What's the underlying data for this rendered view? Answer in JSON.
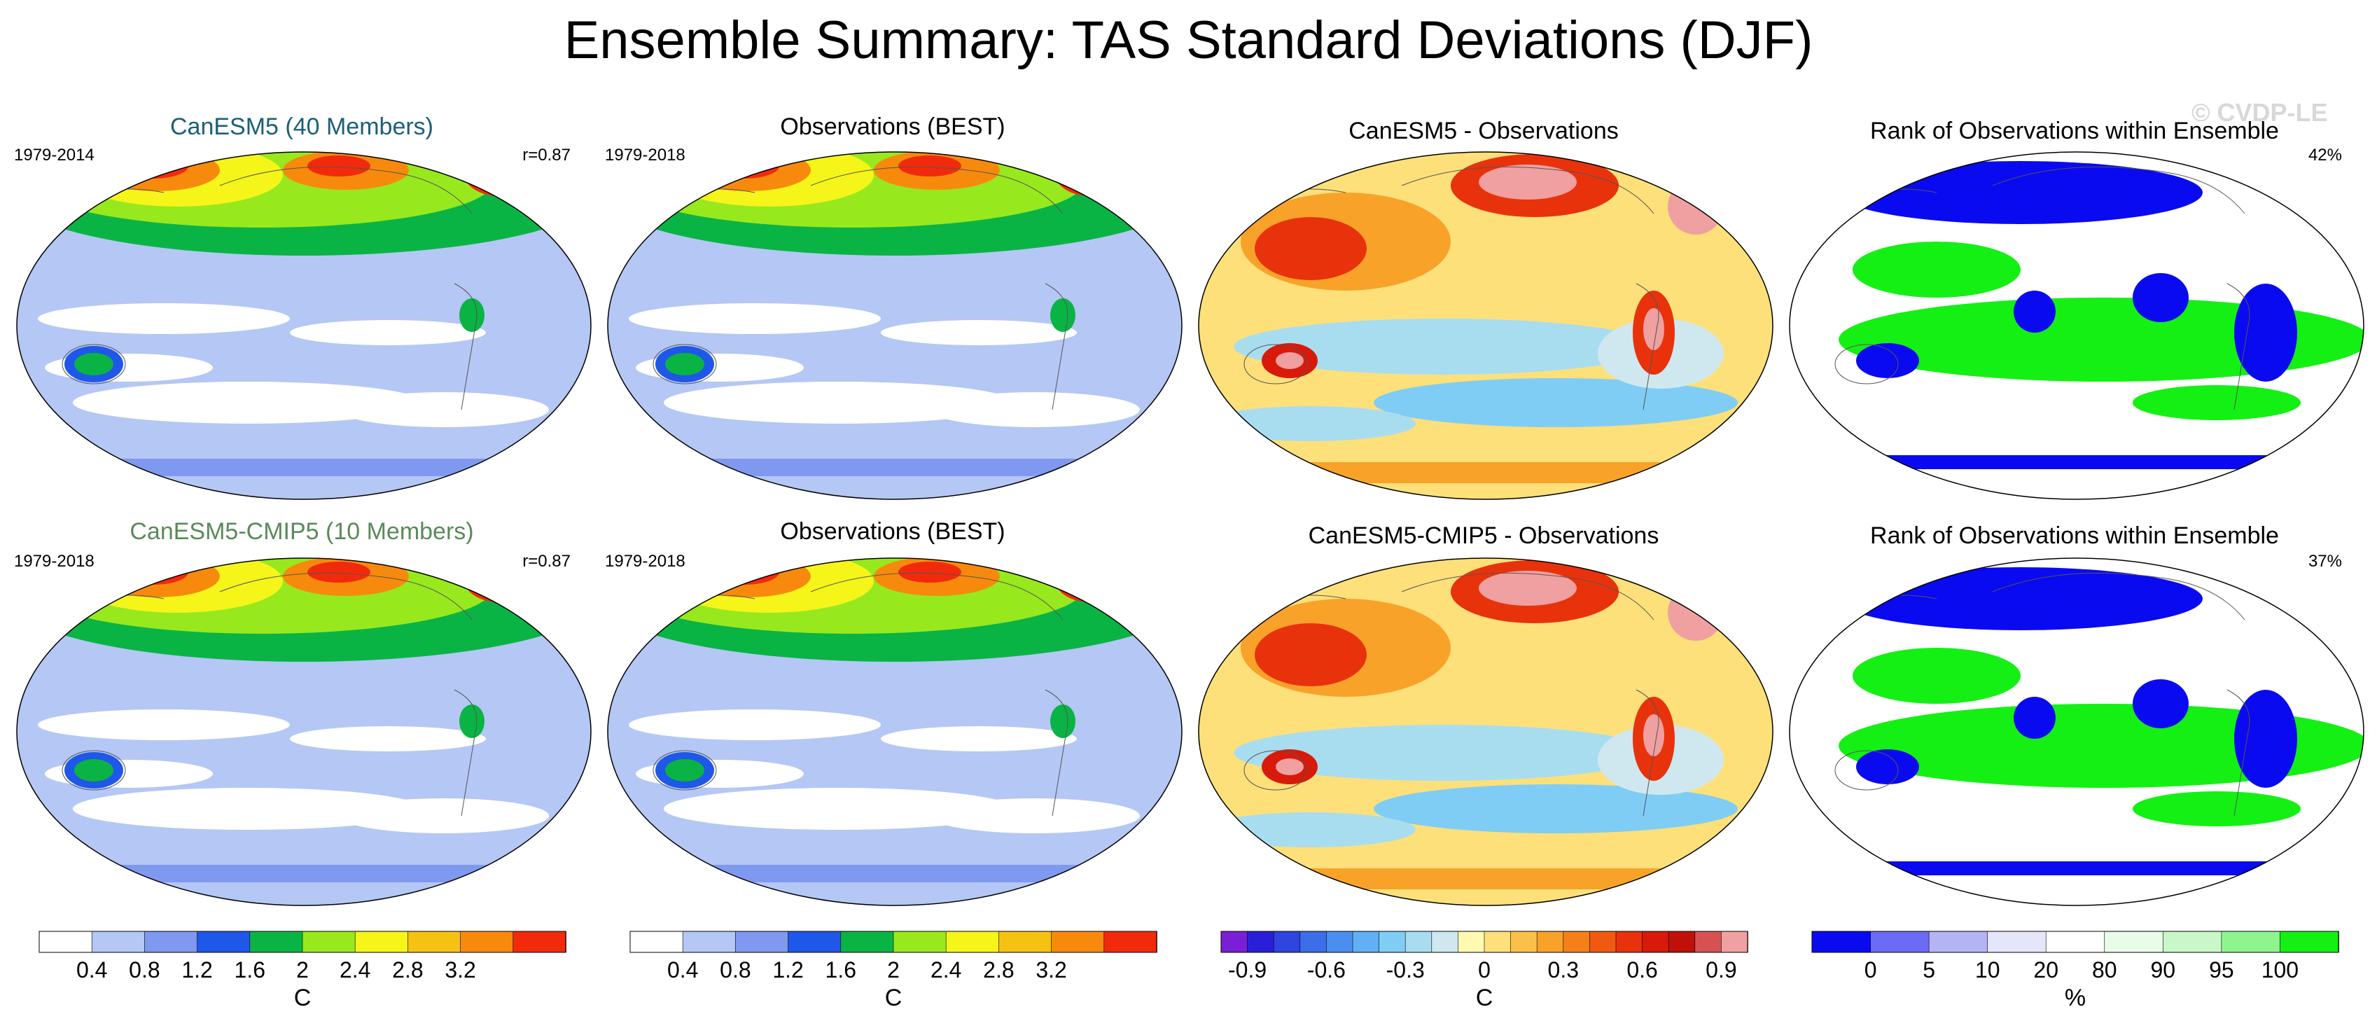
{
  "figure": {
    "title": "Ensemble Summary: TAS Standard Deviations (DJF)",
    "watermark": "© CVDP-LE"
  },
  "panels": [
    {
      "title": "CanESM5 (40 Members)",
      "title_color": "#1a5f79",
      "years": "1979-2014",
      "stat": "r=0.87",
      "scheme": "std"
    },
    {
      "title": "Observations (BEST)",
      "title_color": "#000000",
      "years": "1979-2018",
      "stat": "",
      "scheme": "std"
    },
    {
      "title": "CanESM5 - Observations",
      "title_color": "#000000",
      "years": "",
      "stat": "",
      "scheme": "diff"
    },
    {
      "title": "Rank of Observations within Ensemble",
      "title_color": "#000000",
      "years": "",
      "stat": "42%",
      "scheme": "rank"
    },
    {
      "title": "CanESM5-CMIP5 (10 Members)",
      "title_color": "#5a8a5a",
      "years": "1979-2018",
      "stat": "r=0.87",
      "scheme": "std"
    },
    {
      "title": "Observations (BEST)",
      "title_color": "#000000",
      "years": "1979-2018",
      "stat": "",
      "scheme": "std"
    },
    {
      "title": "CanESM5-CMIP5 - Observations",
      "title_color": "#000000",
      "years": "",
      "stat": "",
      "scheme": "diff"
    },
    {
      "title": "Rank of Observations within Ensemble",
      "title_color": "#000000",
      "years": "",
      "stat": "37%",
      "scheme": "rank"
    }
  ],
  "colorbars": [
    {
      "name": "std-1",
      "unit": "C",
      "colors": [
        "#ffffff",
        "#b4c7f5",
        "#7f99f0",
        "#1f57e8",
        "#0ab444",
        "#98e81e",
        "#f5f51a",
        "#f5c214",
        "#f78a0c",
        "#f22a0c"
      ],
      "labels": [
        "0.4",
        "0.8",
        "1.2",
        "1.6",
        "2",
        "2.4",
        "2.8",
        "3.2"
      ]
    },
    {
      "name": "std-2",
      "unit": "C",
      "colors": [
        "#ffffff",
        "#b4c7f5",
        "#7f99f0",
        "#1f57e8",
        "#0ab444",
        "#98e81e",
        "#f5f51a",
        "#f5c214",
        "#f78a0c",
        "#f22a0c"
      ],
      "labels": [
        "0.4",
        "0.8",
        "1.2",
        "1.6",
        "2",
        "2.4",
        "2.8",
        "3.2"
      ]
    },
    {
      "name": "diff",
      "unit": "C",
      "colors": [
        "#7a1fd6",
        "#2a1fd9",
        "#2e45e0",
        "#3c6ee8",
        "#4a8ff0",
        "#5fb0f5",
        "#7fcdf5",
        "#a8ddf0",
        "#cfe8ef",
        "#fffab0",
        "#fde07a",
        "#fbc04a",
        "#f8a22a",
        "#f5801a",
        "#f05a10",
        "#e8320c",
        "#d81a0a",
        "#c0100a",
        "#d65252",
        "#f0a0a0"
      ],
      "labels": [
        "-0.9",
        "-0.6",
        "-0.3",
        "0",
        "0.3",
        "0.6",
        "0.9"
      ]
    },
    {
      "name": "rank",
      "unit": "%",
      "colors": [
        "#0a0af0",
        "#6b6bf5",
        "#b4b4f5",
        "#e6e6fa",
        "#ffffff",
        "#e8fce8",
        "#c8f8c8",
        "#8ef58e",
        "#14f014"
      ],
      "labels": [
        "0",
        "5",
        "10",
        "20",
        "80",
        "90",
        "95",
        "100"
      ]
    }
  ]
}
